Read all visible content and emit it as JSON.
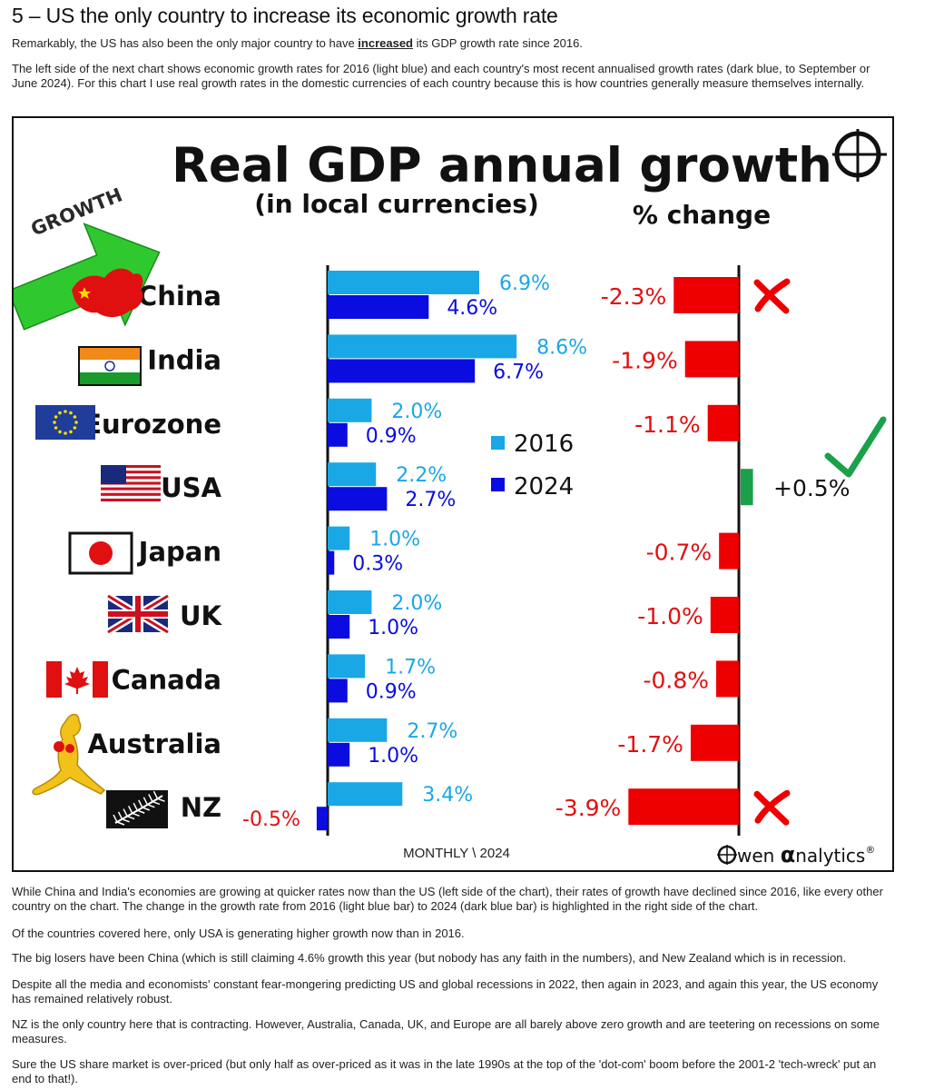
{
  "article": {
    "heading": "5 – US the only country to increase its economic growth rate",
    "intro_before": "Remarkably, the US has also been the only major country to have ",
    "intro_emph": "increased",
    "intro_after": " its GDP growth rate since 2016.",
    "chart_intro": "The left side of the next chart shows economic growth rates for 2016 (light blue) and each country's most recent annualised growth rates (dark blue, to September or June 2024). For this chart I use real growth rates in the domestic currencies of each country because this is how countries generally measure themselves internally.",
    "body": [
      "While China and India's economies are growing at quicker rates now than the US (left side of the chart), their rates of growth have declined since 2016, like every other country on the chart. The change in the growth rate from 2016 (light blue bar) to 2024 (dark blue bar) is highlighted in the right side of the chart.",
      "Of the countries covered here, only USA is generating higher growth now than in 2016.",
      "The big losers have been China (which is still claiming 4.6% growth this year (but nobody has any faith in the numbers), and New Zealand which is in recession.",
      "Despite all the media and economists' constant fear-mongering predicting US and global recessions in 2022, then again in 2023, and again this year, the US economy has remained relatively robust.",
      "NZ is the only country here that is contracting. However, Australia, Canada, UK, and Europe are all barely above zero growth and are teetering on recessions on some measures.",
      "Sure the US share market is over-priced (but only half as over-priced as it was in the late 1990s at the top of the 'dot-com' boom before the 2001-2 'tech-wreck' put an end to that!)."
    ]
  },
  "chart_data": {
    "type": "bar",
    "title": "Real GDP annual growth",
    "subtitle": "(in local currencies)",
    "right_header": "% change",
    "badge_text": "GROWTH",
    "footer": "MONTHLY \\ 2024",
    "brand": {
      "prefix": "wen ",
      "alpha": "α",
      "suffix": "nalytics",
      "reg": "®"
    },
    "categories": [
      "China",
      "India",
      "Eurozone",
      "USA",
      "Japan",
      "UK",
      "Canada",
      "Australia",
      "NZ"
    ],
    "series": [
      {
        "name": "2016",
        "color": "#1aa7e6",
        "values": [
          6.9,
          8.6,
          2.0,
          2.2,
          1.0,
          2.0,
          1.7,
          2.7,
          3.4
        ],
        "labels": [
          "6.9%",
          "8.6%",
          "2.0%",
          "2.2%",
          "1.0%",
          "2.0%",
          "1.7%",
          "2.7%",
          "3.4%"
        ]
      },
      {
        "name": "2024",
        "color": "#0a0ce0",
        "values": [
          4.6,
          6.7,
          0.9,
          2.7,
          0.3,
          1.0,
          0.9,
          1.0,
          -0.5
        ],
        "labels": [
          "4.6%",
          "6.7%",
          "0.9%",
          "2.7%",
          "0.3%",
          "1.0%",
          "0.9%",
          "1.0%",
          "-0.5%"
        ]
      }
    ],
    "change": {
      "name": "% change",
      "values": [
        -2.3,
        -1.9,
        -1.1,
        0.5,
        -0.7,
        -1.0,
        -0.8,
        -1.7,
        -3.9
      ],
      "labels": [
        "-2.3%",
        "-1.9%",
        "-1.1%",
        "+0.5%",
        "-0.7%",
        "-1.0%",
        "-0.8%",
        "-1.7%",
        "-3.9%"
      ],
      "negative_color": "#ee0000",
      "positive_color": "#1aa14a"
    },
    "marks": {
      "cross_rows": [
        0,
        8
      ],
      "check_rows": [
        3
      ]
    },
    "legend": [
      "2016",
      "2024"
    ],
    "legend_position": "center",
    "colors": {
      "red_text": "#e01010",
      "green_check": "#1aa14a",
      "black": "#000000"
    }
  }
}
